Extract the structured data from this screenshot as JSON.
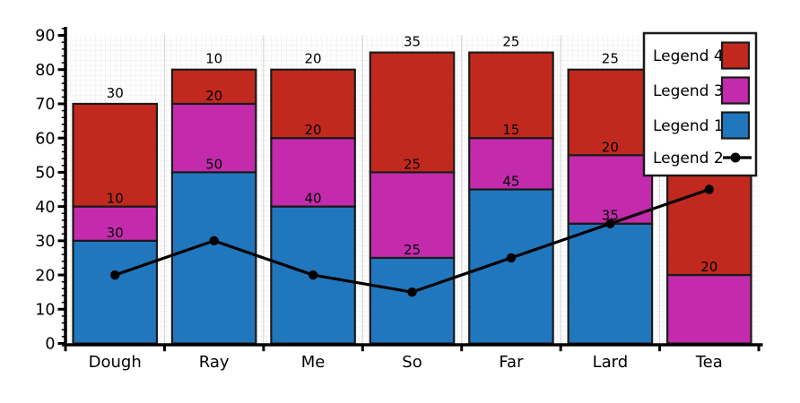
{
  "chart_data": {
    "type": "bar",
    "subtype": "stacked-bars-with-line-overlay",
    "title": "",
    "xlabel": "",
    "ylabel": "",
    "categories": [
      "Dough",
      "Ray",
      "Me",
      "So",
      "Far",
      "Lard",
      "Tea"
    ],
    "series": [
      {
        "name": "Legend 1",
        "color": "#2177BE",
        "values": [
          30,
          50,
          40,
          25,
          45,
          35,
          0
        ],
        "labels": [
          "30",
          "50",
          "40",
          "25",
          "45",
          "35",
          ""
        ]
      },
      {
        "name": "Legend 3",
        "color": "#C32BAC",
        "values": [
          10,
          20,
          20,
          25,
          15,
          20,
          20
        ],
        "labels": [
          "10",
          "20",
          "20",
          "25",
          "15",
          "20",
          "20"
        ]
      },
      {
        "name": "Legend 4",
        "color": "#C2291E",
        "values": [
          30,
          10,
          20,
          35,
          25,
          25,
          70
        ],
        "labels": [
          "30",
          "10",
          "20",
          "35",
          "25",
          "25",
          ""
        ]
      }
    ],
    "line_series": {
      "name": "Legend 2",
      "color": "#000000",
      "marker": "filled-circle",
      "values": [
        20,
        30,
        20,
        15,
        25,
        35,
        45
      ]
    },
    "ylim": [
      0,
      90
    ],
    "yticks": [
      0,
      10,
      20,
      30,
      40,
      50,
      60,
      70,
      80,
      90
    ],
    "grid": "fine graph-paper minor grid with light category boundary lines",
    "legend": {
      "position": "upper-right",
      "entries": [
        {
          "label": "Legend 4",
          "swatch": "patch",
          "color": "#C2291E"
        },
        {
          "label": "Legend 3",
          "swatch": "patch",
          "color": "#C32BAC"
        },
        {
          "label": "Legend 1",
          "swatch": "patch",
          "color": "#2177BE"
        },
        {
          "label": "Legend 2",
          "swatch": "line-with-dot",
          "color": "#000000"
        }
      ]
    }
  },
  "colors": {
    "bar_edge": "#1a1a1a",
    "axis": "#000000",
    "grid_minor": "#e9e9e9",
    "grid_boundary": "#d9d9d9",
    "background": "#ffffff"
  }
}
